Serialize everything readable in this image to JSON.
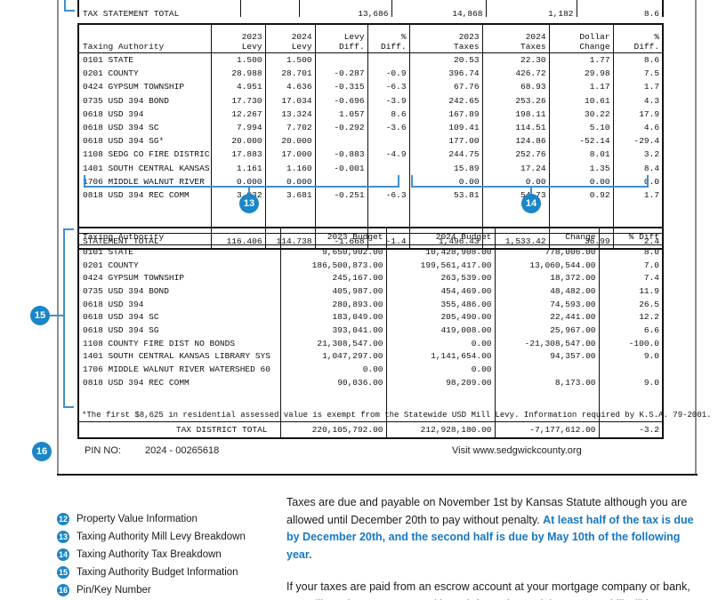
{
  "colors": {
    "callout_blue": "#1b86c8",
    "bracket_blue": "#3f8fd2",
    "highlight_blue": "#1778c2",
    "page_border_gray": "#8f8f8f"
  },
  "top_table": {
    "total_row": [
      "TAX STATEMENT TOTAL",
      "",
      "13,686",
      "14,868",
      "1,182",
      "8.6"
    ]
  },
  "levy_table": {
    "header_line1": [
      "",
      "2023",
      "2024",
      "Levy",
      "%",
      "2023",
      "2024",
      "Dollar",
      "%"
    ],
    "header_line2": [
      "Taxing Authority",
      "Levy",
      "Levy",
      "Diff.",
      "Diff.",
      "Taxes",
      "Taxes",
      "Change",
      "Diff."
    ],
    "rows": [
      [
        "0101 STATE",
        "1.500",
        "1.500",
        "",
        "",
        "20.53",
        "22.30",
        "1.77",
        "8.6"
      ],
      [
        "0201 COUNTY",
        "28.988",
        "28.701",
        "-0.287",
        "-0.9",
        "396.74",
        "426.72",
        "29.98",
        "7.5"
      ],
      [
        "0424 GYPSUM TOWNSHIP",
        "4.951",
        "4.636",
        "-0.315",
        "-6.3",
        "67.76",
        "68.93",
        "1.17",
        "1.7"
      ],
      [
        "0735 USD 394 BOND",
        "17.730",
        "17.034",
        "-0.696",
        "-3.9",
        "242.65",
        "253.26",
        "10.61",
        "4.3"
      ],
      [
        "0618 USD 394",
        "12.267",
        "13.324",
        "1.057",
        "8.6",
        "167.89",
        "198.11",
        "30.22",
        "17.9"
      ],
      [
        "0618 USD 394 SC",
        "7.994",
        "7.702",
        "-0.292",
        "-3.6",
        "109.41",
        "114.51",
        "5.10",
        "4.6"
      ],
      [
        "0618 USD 394 SG*",
        "20.000",
        "20.000",
        "",
        "",
        "177.00",
        "124.86",
        "-52.14",
        "-29.4"
      ],
      [
        "1108 SEDG CO FIRE DISTRIC",
        "17.883",
        "17.000",
        "-0.883",
        "-4.9",
        "244.75",
        "252.76",
        "8.01",
        "3.2"
      ],
      [
        "1401 SOUTH CENTRAL KANSAS",
        "1.161",
        "1.160",
        "-0.001",
        "",
        "15.89",
        "17.24",
        "1.35",
        "8.4"
      ],
      [
        "1706 MIDDLE WALNUT RIVER",
        "0.000",
        "0.000",
        "",
        "",
        "0.00",
        "0.00",
        "0.00",
        "0.0"
      ],
      [
        "0818 USD 394 REC COMM",
        "3.932",
        "3.681",
        "-0.251",
        "-6.3",
        "53.81",
        "54.73",
        "0.92",
        "1.7"
      ]
    ],
    "total_row": [
      "STATEMENT TOTAL",
      "116.406",
      "114.738",
      "-1.668",
      "-1.4",
      "1,496.43",
      "1,533.42",
      "36.99",
      "2.4"
    ]
  },
  "budget_table": {
    "headers": [
      "Taxing Authority",
      "2023 Budget",
      "2024 Budget",
      "Change",
      "% Diff"
    ],
    "rows": [
      [
        "0101 STATE",
        "9,650,902.00",
        "10,428,908.00",
        "778,006.00",
        "8.0"
      ],
      [
        "0201 COUNTY",
        "186,500,873.00",
        "199,561,417.00",
        "13,060,544.00",
        "7.0"
      ],
      [
        "0424 GYPSUM TOWNSHIP",
        "245,167.00",
        "263,539.00",
        "18,372.00",
        "7.4"
      ],
      [
        "0735 USD 394 BOND",
        "405,987.00",
        "454,469.00",
        "48,482.00",
        "11.9"
      ],
      [
        "0618 USD 394",
        "280,893.00",
        "355,486.00",
        "74,593.00",
        "26.5"
      ],
      [
        "0618 USD 394 SC",
        "183,049.00",
        "205,490.00",
        "22,441.00",
        "12.2"
      ],
      [
        "0618 USD 394 SG",
        "393,041.00",
        "419,008.00",
        "25,967.00",
        "6.6"
      ],
      [
        "1108 COUNTY FIRE DIST NO BONDS",
        "21,308,547.00",
        "0.00",
        "-21,308,547.00",
        "-100.0"
      ],
      [
        "1401 SOUTH CENTRAL KANSAS LIBRARY SYS",
        "1,047,297.00",
        "1,141,654.00",
        "94,357.00",
        "9.0"
      ],
      [
        "1706 MIDDLE WALNUT RIVER WATERSHED 60",
        "0.00",
        "0.00",
        "",
        ""
      ],
      [
        "0818 USD 394 REC COMM",
        "90,036.00",
        "98,209.00",
        "8,173.00",
        "9.0"
      ]
    ],
    "total_row": [
      "TAX DISTRICT TOTAL",
      "220,105,792.00",
      "212,928,180.00",
      "-7,177,612.00",
      "-3.2"
    ],
    "footnote": "*The first $8,625 in residential assessed value is exempt from the Statewide USD Mill Levy. Information required by K.S.A. 79-2001."
  },
  "pin_section": {
    "label": "PIN NO:",
    "value": "2024 - 00265618",
    "visit": "Visit www.sedgwickcounty.org"
  },
  "callouts": {
    "c13": "13",
    "c14": "14",
    "c15": "15",
    "c16": "16"
  },
  "legend": [
    {
      "num": "12",
      "label": "Property Value Information"
    },
    {
      "num": "13",
      "label": "Taxing Authority Mill Levy Breakdown"
    },
    {
      "num": "14",
      "label": "Taxing Authority Tax Breakdown"
    },
    {
      "num": "15",
      "label": "Taxing Authority Budget Information"
    },
    {
      "num": "16",
      "label": "Pin/Key Number"
    }
  ],
  "paragraphs": {
    "p1_black": "Taxes are due and payable on November 1st by Kansas Statute although you are allowed until December 20th to pay without penalty. ",
    "p1_blue": "At least half of the tax is due by December 20th, and the second half is due by May 10th of the following year.",
    "p2": "If your taxes are paid from an escrow account at your mortgage company or bank, you will receive a statement with tax information on it but your tax bill will be sent"
  }
}
